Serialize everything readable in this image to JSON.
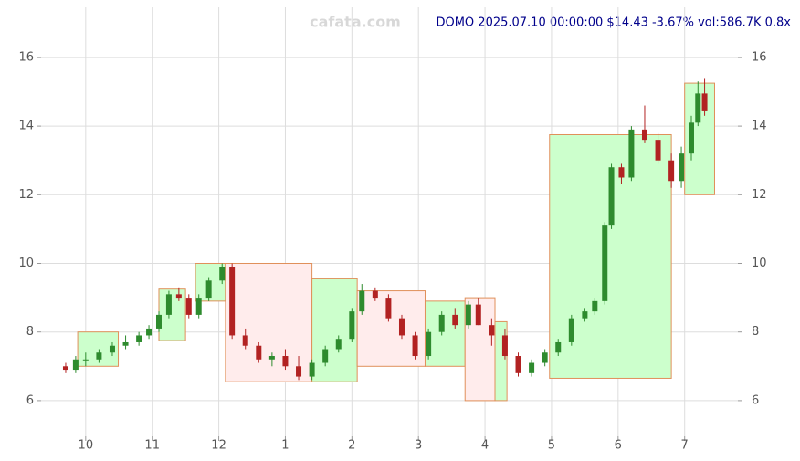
{
  "chart_data": {
    "type": "candlestick",
    "title": "DOMO 2025.07.10 00:00:00 $14.43 -3.67% vol:586.7K 0.8x",
    "watermark": "cafata.com",
    "x": [
      9.7,
      9.85,
      10.0,
      10.2,
      10.4,
      10.6,
      10.8,
      10.95,
      11.1,
      11.25,
      11.4,
      11.55,
      11.7,
      11.85,
      12.05,
      12.2,
      12.4,
      12.6,
      12.8,
      13.0,
      13.2,
      13.4,
      13.6,
      13.8,
      14.0,
      14.15,
      14.35,
      14.55,
      14.75,
      14.95,
      15.15,
      15.35,
      15.55,
      15.75,
      15.9,
      16.1,
      16.3,
      16.5,
      16.7,
      16.9,
      17.1,
      17.3,
      17.5,
      17.65,
      17.8,
      17.9,
      18.05,
      18.2,
      18.4,
      18.6,
      18.8,
      18.95,
      19.1,
      19.2,
      19.3
    ],
    "open": [
      7.0,
      6.9,
      7.2,
      7.2,
      7.4,
      7.6,
      7.7,
      7.9,
      8.1,
      8.5,
      9.1,
      9.0,
      8.5,
      9.0,
      9.5,
      9.9,
      7.9,
      7.6,
      7.2,
      7.3,
      7.0,
      6.7,
      7.1,
      7.5,
      7.8,
      8.6,
      9.2,
      9.0,
      8.4,
      7.9,
      7.3,
      8.0,
      8.5,
      8.2,
      8.8,
      8.2,
      7.9,
      7.3,
      6.8,
      7.1,
      7.4,
      7.7,
      8.4,
      8.6,
      8.9,
      11.1,
      12.8,
      12.5,
      13.9,
      13.6,
      13.0,
      12.4,
      13.2,
      14.1,
      14.95
    ],
    "high": [
      7.1,
      7.3,
      7.4,
      7.5,
      7.7,
      7.9,
      8.0,
      8.2,
      8.6,
      9.2,
      9.3,
      9.1,
      9.1,
      9.6,
      10.0,
      10.0,
      8.1,
      7.7,
      7.4,
      7.5,
      7.3,
      7.2,
      7.6,
      7.9,
      8.7,
      9.4,
      9.3,
      9.1,
      8.5,
      8.0,
      8.1,
      8.6,
      8.7,
      8.9,
      9.0,
      8.4,
      8.1,
      7.4,
      7.2,
      7.5,
      7.8,
      8.5,
      8.7,
      9.0,
      11.2,
      12.9,
      12.9,
      14.0,
      14.6,
      13.8,
      13.2,
      13.4,
      14.3,
      15.3,
      15.4
    ],
    "low": [
      6.8,
      6.8,
      7.0,
      7.1,
      7.3,
      7.5,
      7.6,
      7.8,
      8.0,
      8.4,
      8.9,
      8.4,
      8.4,
      8.9,
      9.4,
      7.8,
      7.5,
      7.1,
      7.0,
      6.9,
      6.6,
      6.6,
      7.0,
      7.4,
      7.7,
      8.5,
      8.9,
      8.3,
      7.8,
      7.2,
      7.2,
      7.9,
      8.1,
      8.1,
      8.2,
      7.6,
      7.2,
      6.7,
      6.7,
      7.0,
      7.3,
      7.6,
      8.3,
      8.5,
      8.8,
      11.0,
      12.3,
      12.4,
      13.5,
      12.9,
      12.2,
      12.2,
      13.0,
      14.0,
      14.3
    ],
    "close": [
      6.9,
      7.2,
      7.2,
      7.4,
      7.6,
      7.7,
      7.9,
      8.1,
      8.5,
      9.1,
      9.0,
      8.5,
      9.0,
      9.5,
      9.9,
      7.9,
      7.6,
      7.2,
      7.3,
      7.0,
      6.7,
      7.1,
      7.5,
      7.8,
      8.6,
      9.2,
      9.0,
      8.4,
      7.9,
      7.3,
      8.0,
      8.5,
      8.2,
      8.8,
      8.2,
      7.9,
      7.3,
      6.8,
      7.1,
      7.4,
      7.7,
      8.4,
      8.6,
      8.9,
      11.1,
      12.8,
      12.5,
      13.9,
      13.6,
      13.0,
      12.4,
      13.2,
      14.1,
      14.95,
      14.43
    ],
    "up_color": "#2e8b2e",
    "down_color": "#b22222",
    "boxes": [
      {
        "x": [
          9.88,
          10.49
        ],
        "y": [
          7.0,
          8.0
        ],
        "color": "#ccffcc"
      },
      {
        "x": [
          11.1,
          11.5
        ],
        "y": [
          7.75,
          9.25
        ],
        "color": "#ccffcc"
      },
      {
        "x": [
          11.65,
          12.1
        ],
        "y": [
          8.9,
          10.0
        ],
        "color": "#ccffcc"
      },
      {
        "x": [
          12.1,
          13.4
        ],
        "y": [
          6.55,
          10.0
        ],
        "color": "#ffecec"
      },
      {
        "x": [
          13.4,
          14.08
        ],
        "y": [
          6.55,
          9.55
        ],
        "color": "#ccffcc"
      },
      {
        "x": [
          14.08,
          15.1
        ],
        "y": [
          7.0,
          9.2
        ],
        "color": "#ffecec"
      },
      {
        "x": [
          15.1,
          15.7
        ],
        "y": [
          7.0,
          8.9
        ],
        "color": "#ccffcc"
      },
      {
        "x": [
          15.7,
          16.15
        ],
        "y": [
          6.0,
          9.0
        ],
        "color": "#ffecec"
      },
      {
        "x": [
          16.15,
          16.33
        ],
        "y": [
          6.0,
          8.3
        ],
        "color": "#ccffcc"
      },
      {
        "x": [
          16.97,
          18.8
        ],
        "y": [
          6.65,
          13.75
        ],
        "color": "#ccffcc"
      },
      {
        "x": [
          19.0,
          19.45
        ],
        "y": [
          12.0,
          15.25
        ],
        "color": "#ccffcc"
      }
    ],
    "xlim": [
      9.33,
      19.8
    ],
    "ylim": [
      4.96,
      17.46
    ],
    "xticks": [
      10,
      11,
      12,
      {
        "value": 13,
        "label": "1"
      },
      {
        "value": 14,
        "label": "2"
      },
      {
        "value": 15,
        "label": "3"
      },
      {
        "value": 16,
        "label": "4"
      },
      {
        "value": 17,
        "label": "5"
      },
      {
        "value": 18,
        "label": "6"
      },
      {
        "value": 19,
        "label": "7"
      }
    ],
    "yticks": [
      6,
      8,
      10,
      12,
      14,
      16
    ],
    "grid": true
  }
}
